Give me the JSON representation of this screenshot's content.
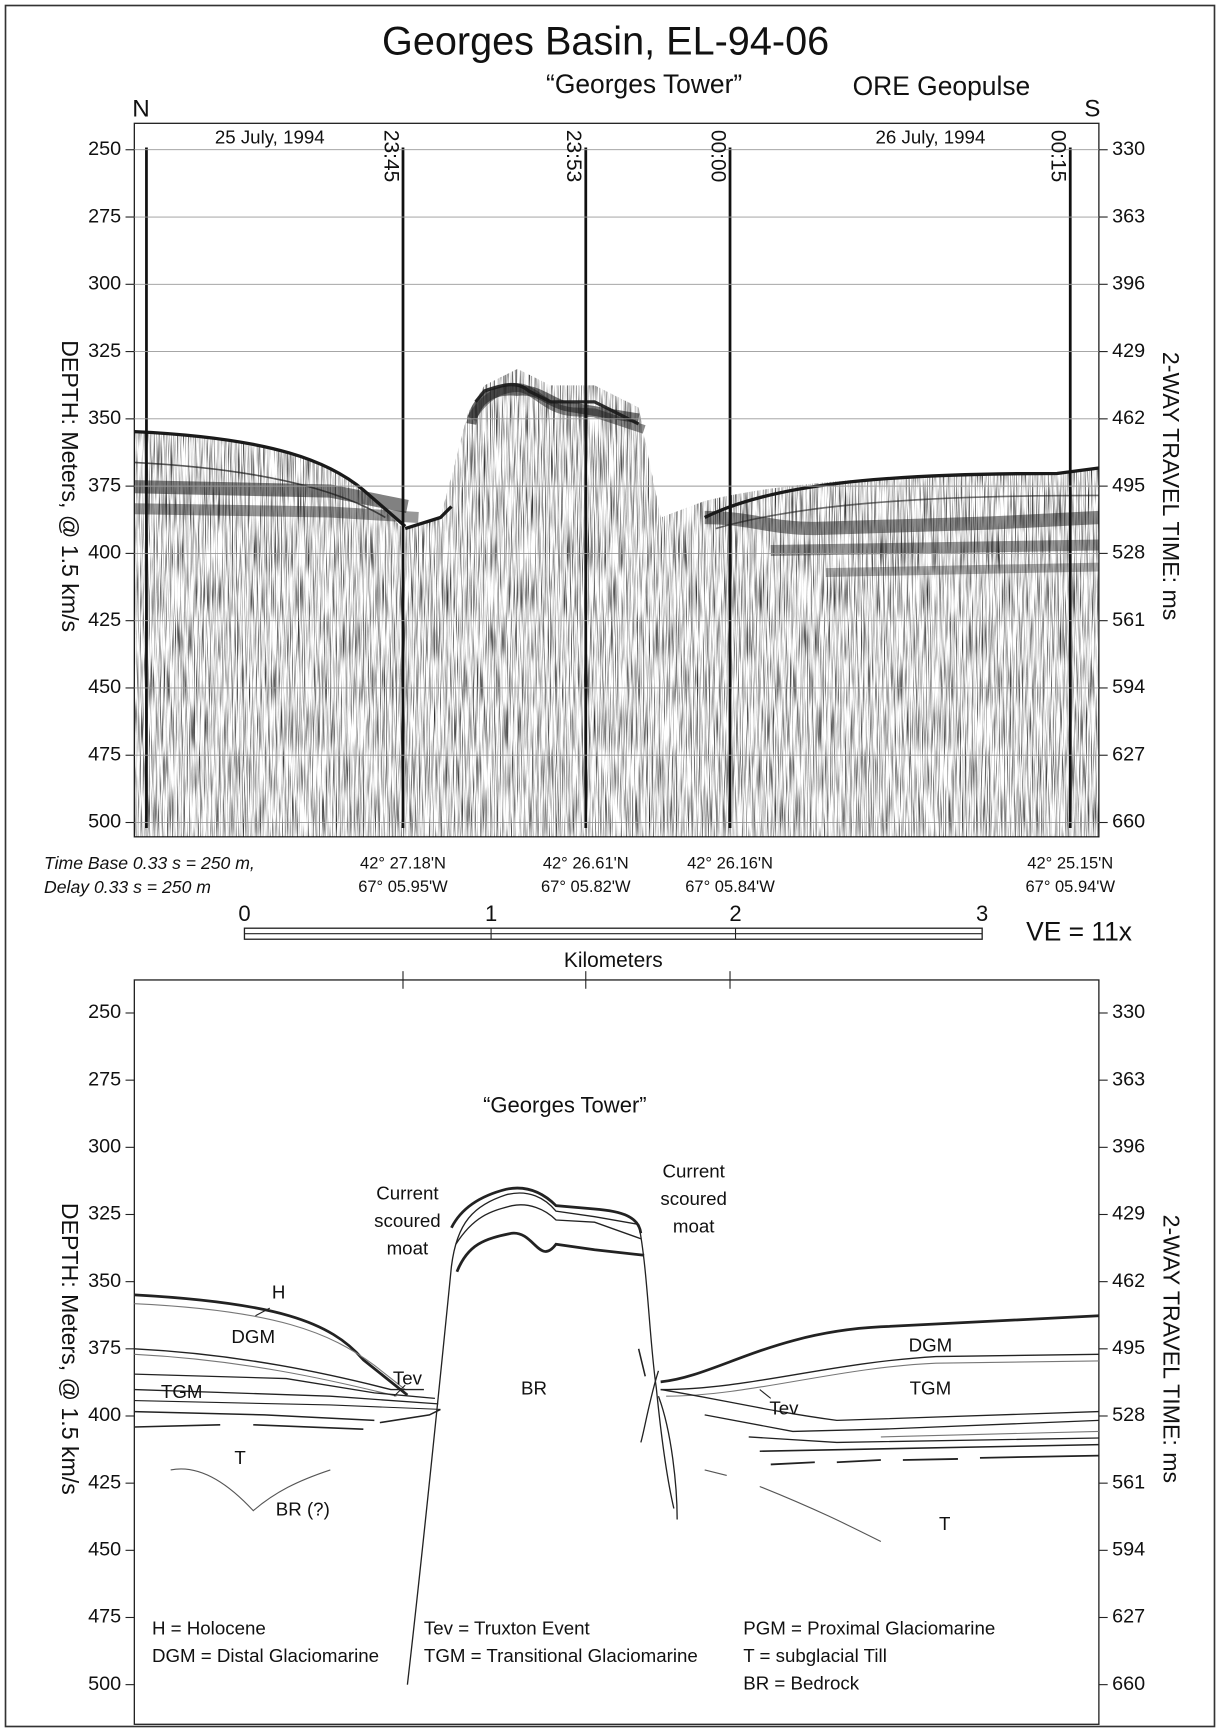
{
  "title": "Georges Basin, EL-94-06",
  "subtitle": "“Georges Tower”",
  "source": "ORE Geopulse",
  "north": "N",
  "south": "S",
  "top_panel": {
    "dates": [
      "25 July, 1994",
      "26 July, 1994"
    ],
    "time_marks": [
      "23:45",
      "23:53",
      "00:00",
      "00:15"
    ],
    "ylim": [
      250,
      500
    ],
    "yticks": [
      250,
      275,
      300,
      325,
      350,
      375,
      400,
      425,
      450,
      475,
      500
    ],
    "y2lim": [
      330,
      660
    ],
    "y2ticks": [
      330,
      363,
      396,
      429,
      462,
      495,
      528,
      561,
      594,
      627,
      660
    ],
    "y_label": "DEPTH: Meters, @ 1.5 km/s",
    "y2_label": "2-WAY TRAVEL TIME: ms",
    "notes": [
      "Time Base 0.33 s = 250 m,",
      "Delay 0.33 s = 250 m"
    ],
    "positions": [
      [
        "42° 27.18'N",
        "67° 05.95'W"
      ],
      [
        "42° 26.61'N",
        "67° 05.82'W"
      ],
      [
        "42° 26.16'N",
        "67° 05.84'W"
      ],
      [
        "42° 25.15'N",
        "67° 05.94'W"
      ]
    ]
  },
  "scale_bar": {
    "ticks": [
      0,
      1,
      2,
      3
    ],
    "label": "Kilometers",
    "ve": "VE = 11x"
  },
  "bottom_panel": {
    "annotation": "“Georges Tower”",
    "ylim": [
      250,
      500
    ],
    "yticks": [
      250,
      275,
      300,
      325,
      350,
      375,
      400,
      425,
      450,
      475,
      500
    ],
    "y2lim": [
      330,
      660
    ],
    "y2ticks": [
      330,
      363,
      396,
      429,
      462,
      495,
      528,
      561,
      594,
      627,
      660
    ],
    "y_label": "DEPTH: Meters, @ 1.5 km/s",
    "y2_label": "2-WAY TRAVEL TIME: ms",
    "moat_labels": [
      [
        "Current",
        "scoured",
        "moat"
      ],
      [
        "Current",
        "scoured",
        "moat"
      ]
    ],
    "unit_labels": [
      "H",
      "DGM",
      "TGM",
      "Tev",
      "BR",
      "T",
      "BR (?)",
      "DGM",
      "TGM",
      "Tev",
      "T"
    ],
    "legend": [
      "H = Holocene",
      "DGM = Distal Glaciomarine",
      "Tev = Truxton Event",
      "TGM = Transitional Glaciomarine",
      "PGM = Proximal Glaciomarine",
      "T = subglacial Till",
      "BR = Bedrock"
    ]
  }
}
